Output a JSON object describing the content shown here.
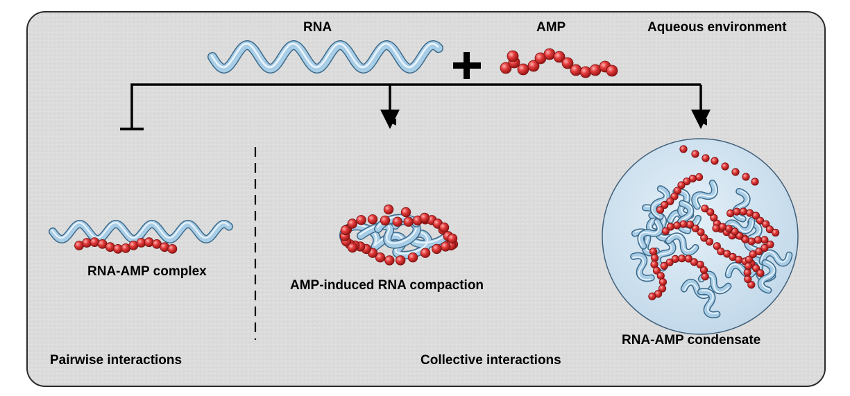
{
  "labels": {
    "rna": "RNA",
    "amp": "AMP",
    "environment": "Aqueous environment",
    "complex": "RNA-AMP complex",
    "compaction": "AMP-induced RNA compaction",
    "condensate": "RNA-AMP condensate",
    "pairwise": "Pairwise interactions",
    "collective": "Collective interactions"
  },
  "colors": {
    "panel_bg": "#dedede",
    "panel_border": "#2a2a2a",
    "rna_fill": "#a8cde6",
    "rna_edge": "#3d6a8a",
    "amp_bead": "#e23b3b",
    "amp_edge": "#7a1010",
    "droplet_fill": "#cfe3f1",
    "droplet_edge": "#3f5f7a",
    "arrow": "#000000"
  }
}
